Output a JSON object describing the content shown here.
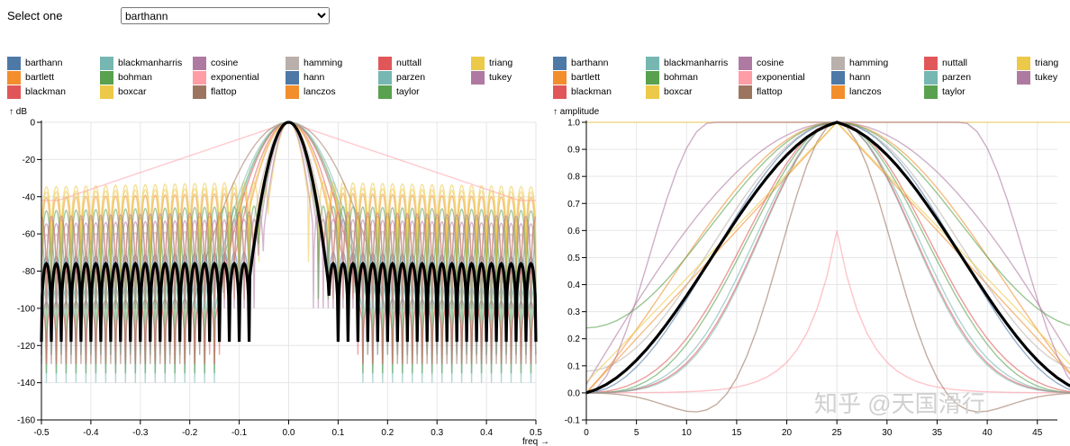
{
  "selector": {
    "label": "Select one",
    "selected": "barthann"
  },
  "legend_left": [
    {
      "label": "barthann",
      "color": "#4e79a7"
    },
    {
      "label": "bartlett",
      "color": "#f28e2c"
    },
    {
      "label": "blackman",
      "color": "#e15759"
    },
    {
      "label": "blackmanharris",
      "color": "#76b7b2"
    },
    {
      "label": "bohman",
      "color": "#59a14f"
    },
    {
      "label": "boxcar",
      "color": "#edc949"
    },
    {
      "label": "cosine",
      "color": "#af7aa1"
    },
    {
      "label": "exponential",
      "color": "#ff9da7"
    },
    {
      "label": "flattop",
      "color": "#9c755f"
    },
    {
      "label": "hamming",
      "color": "#bab0ab"
    },
    {
      "label": "hann",
      "color": "#4e79a7"
    },
    {
      "label": "lanczos",
      "color": "#f28e2c"
    },
    {
      "label": "nuttall",
      "color": "#e15759"
    },
    {
      "label": "parzen",
      "color": "#76b7b2"
    },
    {
      "label": "taylor",
      "color": "#59a14f"
    },
    {
      "label": "triang",
      "color": "#edc949"
    },
    {
      "label": "tukey",
      "color": "#af7aa1"
    }
  ],
  "legend_right": [
    {
      "label": "barthann",
      "color": "#4e79a7"
    },
    {
      "label": "bartlett",
      "color": "#f28e2c"
    },
    {
      "label": "blackman",
      "color": "#e15759"
    },
    {
      "label": "blackmanharris",
      "color": "#76b7b2"
    },
    {
      "label": "bohman",
      "color": "#59a14f"
    },
    {
      "label": "boxcar",
      "color": "#edc949"
    },
    {
      "label": "cosine",
      "color": "#af7aa1"
    },
    {
      "label": "exponential",
      "color": "#ff9da7"
    },
    {
      "label": "flattop",
      "color": "#9c755f"
    },
    {
      "label": "hamming",
      "color": "#bab0ab"
    },
    {
      "label": "hann",
      "color": "#4e79a7"
    },
    {
      "label": "lanczos",
      "color": "#f28e2c"
    },
    {
      "label": "nuttall",
      "color": "#e15759"
    },
    {
      "label": "parzen",
      "color": "#76b7b2"
    },
    {
      "label": "taylor",
      "color": "#59a14f"
    },
    {
      "label": "triang",
      "color": "#edc949"
    },
    {
      "label": "tukey",
      "color": "#af7aa1"
    }
  ],
  "highlight_color": "#000000",
  "watermark": "知乎 @天国滑行",
  "chart_data": [
    {
      "type": "line",
      "title": "",
      "xlabel": "freq →",
      "ylabel": "↑ dB",
      "xlim": [
        -0.5,
        0.5
      ],
      "ylim": [
        -160,
        0
      ],
      "xticks": [
        "-0.5",
        "-0.4",
        "-0.3",
        "-0.2",
        "-0.1",
        "0.0",
        "0.1",
        "0.2",
        "0.3",
        "0.4",
        "0.5"
      ],
      "yticks": [
        "0",
        "-20",
        "-40",
        "-60",
        "-80",
        "-100",
        "-120",
        "-140",
        "-160"
      ],
      "grid": true,
      "highlighted_series": "barthann",
      "series": [
        {
          "name": "barthann",
          "mainlobe_halfwidth": 0.08,
          "sidelobe_db": -76,
          "null_depth_db": -118
        },
        {
          "name": "bartlett",
          "mainlobe_halfwidth": 0.08,
          "sidelobe_db": -38,
          "null_depth_db": -90
        },
        {
          "name": "blackman",
          "mainlobe_halfwidth": 0.12,
          "sidelobe_db": -78,
          "null_depth_db": -125
        },
        {
          "name": "blackmanharris",
          "mainlobe_halfwidth": 0.15,
          "sidelobe_db": -92,
          "null_depth_db": -140
        },
        {
          "name": "bohman",
          "mainlobe_halfwidth": 0.13,
          "sidelobe_db": -62,
          "null_depth_db": -135
        },
        {
          "name": "boxcar",
          "mainlobe_halfwidth": 0.04,
          "sidelobe_db": -32,
          "null_depth_db": -75
        },
        {
          "name": "cosine",
          "mainlobe_halfwidth": 0.06,
          "sidelobe_db": -52,
          "null_depth_db": -100
        },
        {
          "name": "exponential",
          "mainlobe_halfwidth": 0.5,
          "sidelobe_db": -40,
          "null_depth_db": -40
        },
        {
          "name": "flattop",
          "mainlobe_halfwidth": 0.2,
          "sidelobe_db": -95,
          "null_depth_db": -130
        },
        {
          "name": "hamming",
          "mainlobe_halfwidth": 0.08,
          "sidelobe_db": -58,
          "null_depth_db": -88
        },
        {
          "name": "hann",
          "mainlobe_halfwidth": 0.08,
          "sidelobe_db": -70,
          "null_depth_db": -110
        },
        {
          "name": "lanczos",
          "mainlobe_halfwidth": 0.07,
          "sidelobe_db": -50,
          "null_depth_db": -95
        },
        {
          "name": "nuttall",
          "mainlobe_halfwidth": 0.15,
          "sidelobe_db": -98,
          "null_depth_db": -130
        },
        {
          "name": "parzen",
          "mainlobe_halfwidth": 0.16,
          "sidelobe_db": -88,
          "null_depth_db": -125
        },
        {
          "name": "taylor",
          "mainlobe_halfwidth": 0.06,
          "sidelobe_db": -45,
          "null_depth_db": -95
        },
        {
          "name": "triang",
          "mainlobe_halfwidth": 0.08,
          "sidelobe_db": -35,
          "null_depth_db": -80
        },
        {
          "name": "tukey",
          "mainlobe_halfwidth": 0.05,
          "sidelobe_db": -48,
          "null_depth_db": -100
        }
      ]
    },
    {
      "type": "line",
      "title": "",
      "xlabel": "",
      "ylabel": "↑ amplitude",
      "xlim": [
        0,
        47
      ],
      "ylim": [
        -0.1,
        1.0
      ],
      "xticks": [
        "0",
        "5",
        "10",
        "15",
        "20",
        "25",
        "30",
        "35",
        "40",
        "45"
      ],
      "yticks": [
        "1.0",
        "0.9",
        "0.8",
        "0.7",
        "0.6",
        "0.5",
        "0.4",
        "0.3",
        "0.2",
        "0.1",
        "0.0",
        "-0.1"
      ],
      "grid": true,
      "highlighted_series": "barthann",
      "window_length": 51,
      "series": [
        {
          "name": "barthann",
          "shape": "barthann"
        },
        {
          "name": "bartlett",
          "shape": "triangle"
        },
        {
          "name": "blackman",
          "shape": "blackman"
        },
        {
          "name": "blackmanharris",
          "shape": "blackmanharris"
        },
        {
          "name": "bohman",
          "shape": "bohman"
        },
        {
          "name": "boxcar",
          "shape": "boxcar"
        },
        {
          "name": "cosine",
          "shape": "cosine"
        },
        {
          "name": "exponential",
          "shape": "exponential",
          "tau": 3
        },
        {
          "name": "flattop",
          "shape": "flattop"
        },
        {
          "name": "hamming",
          "shape": "hamming"
        },
        {
          "name": "hann",
          "shape": "hann"
        },
        {
          "name": "lanczos",
          "shape": "lanczos"
        },
        {
          "name": "nuttall",
          "shape": "nuttall"
        },
        {
          "name": "parzen",
          "shape": "parzen"
        },
        {
          "name": "taylor",
          "shape": "taylor"
        },
        {
          "name": "triang",
          "shape": "triang"
        },
        {
          "name": "tukey",
          "shape": "tukey",
          "alpha": 0.5
        }
      ]
    }
  ]
}
